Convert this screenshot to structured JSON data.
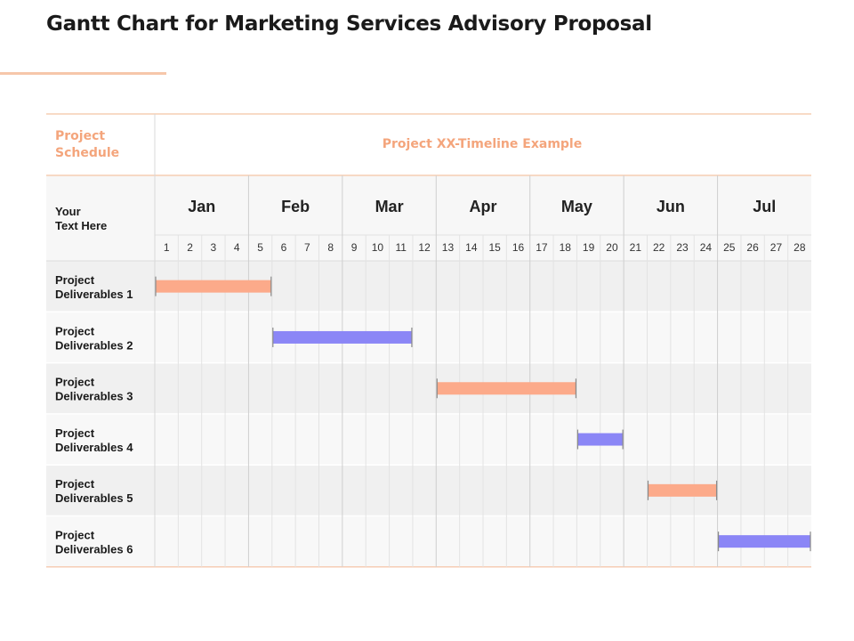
{
  "title": "Gantt Chart for Marketing Services Advisory Proposal",
  "header": {
    "schedule_label": [
      "Project",
      "Schedule"
    ],
    "timeline_label": "Project XX-Timeline Example",
    "corner_label": [
      "Your",
      "Text Here"
    ]
  },
  "colors": {
    "accent": "#f4a57c",
    "orange_bar": "#fcaa8a",
    "purple_bar": "#8b86f6"
  },
  "chart_data": {
    "type": "gantt",
    "months": [
      "Jan",
      "Feb",
      "Mar",
      "Apr",
      "May",
      "Jun",
      "Jul"
    ],
    "weeks_per_month": 4,
    "weeks": [
      1,
      2,
      3,
      4,
      5,
      6,
      7,
      8,
      9,
      10,
      11,
      12,
      13,
      14,
      15,
      16,
      17,
      18,
      19,
      20,
      21,
      22,
      23,
      24,
      25,
      26,
      27,
      28
    ],
    "tasks": [
      {
        "label": [
          "Project",
          "Deliverables 1"
        ],
        "start": 1,
        "end": 5,
        "color": "orange"
      },
      {
        "label": [
          "Project",
          "Deliverables 2"
        ],
        "start": 6,
        "end": 11,
        "color": "purple"
      },
      {
        "label": [
          "Project",
          "Deliverables 3"
        ],
        "start": 13,
        "end": 18,
        "color": "orange"
      },
      {
        "label": [
          "Project",
          "Deliverables 4"
        ],
        "start": 19,
        "end": 20,
        "color": "purple"
      },
      {
        "label": [
          "Project",
          "Deliverables 5"
        ],
        "start": 22,
        "end": 24,
        "color": "orange"
      },
      {
        "label": [
          "Project",
          "Deliverables 6"
        ],
        "start": 25,
        "end": 28,
        "color": "purple"
      }
    ]
  }
}
